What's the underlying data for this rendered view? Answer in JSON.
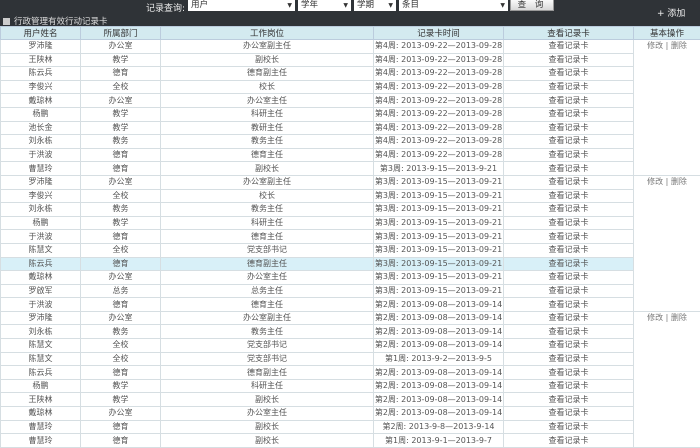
{
  "toolbar": {
    "query_label": "记录查询:",
    "user_select": "用户",
    "year_select": "学年",
    "term_select": "学期",
    "item_select": "条目",
    "search_button": "查 询",
    "add_button": "+ 添加"
  },
  "panel_title": "行政管理有效行动记录卡",
  "columns": [
    "用户姓名",
    "所属部门",
    "工作岗位",
    "记录卡时间",
    "查看记录卡",
    "基本操作"
  ],
  "ops": {
    "edit": "修改",
    "sep": "|",
    "delete": "删除"
  },
  "highlight_color": "#d8f0f8",
  "rows": [
    [
      "罗沛隆",
      "办公室",
      "办公室副主任",
      "第4周: 2013-09-22—2013-09-28",
      "查看记录卡"
    ],
    [
      "王陕林",
      "教学",
      "副校长",
      "第4周: 2013-09-22—2013-09-28",
      "查看记录卡"
    ],
    [
      "陈云兵",
      "德育",
      "德育副主任",
      "第4周: 2013-09-22—2013-09-28",
      "查看记录卡"
    ],
    [
      "李俊兴",
      "全校",
      "校长",
      "第4周: 2013-09-22—2013-09-28",
      "查看记录卡"
    ],
    [
      "戴琼林",
      "办公室",
      "办公室主任",
      "第4周: 2013-09-22—2013-09-28",
      "查看记录卡"
    ],
    [
      "杨鹏",
      "教学",
      "科研主任",
      "第4周: 2013-09-22—2013-09-28",
      "查看记录卡"
    ],
    [
      "池长金",
      "教学",
      "教研主任",
      "第4周: 2013-09-22—2013-09-28",
      "查看记录卡"
    ],
    [
      "刘永栋",
      "教务",
      "教务主任",
      "第4周: 2013-09-22—2013-09-28",
      "查看记录卡"
    ],
    [
      "于洪波",
      "德育",
      "德育主任",
      "第4周: 2013-09-22—2013-09-28",
      "查看记录卡"
    ],
    [
      "曹慧玲",
      "德育",
      "副校长",
      "第3周: 2013-9-15—2013-9-21",
      "查看记录卡"
    ],
    [
      "罗沛隆",
      "办公室",
      "办公室副主任",
      "第3周: 2013-09-15—2013-09-21",
      "查看记录卡"
    ],
    [
      "李俊兴",
      "全校",
      "校长",
      "第3周: 2013-09-15—2013-09-21",
      "查看记录卡"
    ],
    [
      "刘永栋",
      "教务",
      "教务主任",
      "第3周: 2013-09-15—2013-09-21",
      "查看记录卡"
    ],
    [
      "杨鹏",
      "教学",
      "科研主任",
      "第3周: 2013-09-15—2013-09-21",
      "查看记录卡"
    ],
    [
      "于洪波",
      "德育",
      "德育主任",
      "第3周: 2013-09-15—2013-09-21",
      "查看记录卡"
    ],
    [
      "陈慧文",
      "全校",
      "党支部书记",
      "第3周: 2013-09-15—2013-09-21",
      "查看记录卡"
    ],
    [
      "陈云兵",
      "德育",
      "德育副主任",
      "第3周: 2013-09-15—2013-09-21",
      "查看记录卡"
    ],
    [
      "戴琼林",
      "办公室",
      "办公室主任",
      "第3周: 2013-09-15—2013-09-21",
      "查看记录卡"
    ],
    [
      "罗啟军",
      "总务",
      "总务主任",
      "第3周: 2013-09-15—2013-09-21",
      "查看记录卡"
    ],
    [
      "于洪波",
      "德育",
      "德育主任",
      "第2周: 2013-09-08—2013-09-14",
      "查看记录卡"
    ],
    [
      "罗沛隆",
      "办公室",
      "办公室副主任",
      "第2周: 2013-09-08—2013-09-14",
      "查看记录卡"
    ],
    [
      "刘永栋",
      "教务",
      "教务主任",
      "第2周: 2013-09-08—2013-09-14",
      "查看记录卡"
    ],
    [
      "陈慧文",
      "全校",
      "党支部书记",
      "第2周: 2013-09-08—2013-09-14",
      "查看记录卡"
    ],
    [
      "陈慧文",
      "全校",
      "党支部书记",
      "第1周: 2013-9-2—2013-9-5",
      "查看记录卡"
    ],
    [
      "陈云兵",
      "德育",
      "德育副主任",
      "第2周: 2013-09-08—2013-09-14",
      "查看记录卡"
    ],
    [
      "杨鹏",
      "教学",
      "科研主任",
      "第2周: 2013-09-08—2013-09-14",
      "查看记录卡"
    ],
    [
      "王陕林",
      "教学",
      "副校长",
      "第2周: 2013-09-08—2013-09-14",
      "查看记录卡"
    ],
    [
      "戴琼林",
      "办公室",
      "办公室主任",
      "第2周: 2013-09-08—2013-09-14",
      "查看记录卡"
    ],
    [
      "曹慧玲",
      "德育",
      "副校长",
      "第2周: 2013-9-8—2013-9-14",
      "查看记录卡"
    ],
    [
      "曹慧玲",
      "德育",
      "副校长",
      "第1周: 2013-9-1—2013-9-7",
      "查看记录卡"
    ]
  ]
}
